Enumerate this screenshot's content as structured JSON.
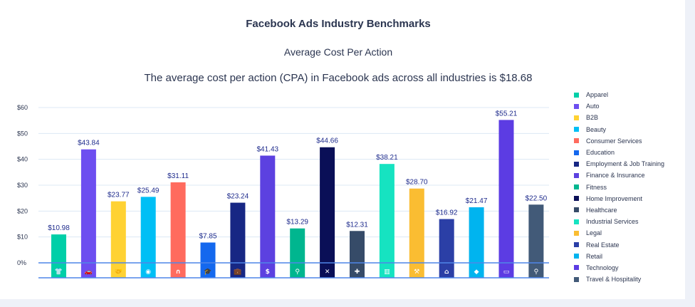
{
  "chart_data": {
    "type": "bar",
    "title": "Facebook Ads Industry Benchmarks",
    "subtitle": "Average Cost Per Action",
    "description": "The average cost per action (CPA) in Facebook ads across all industries is $18.68",
    "xlabel": "",
    "ylabel": "",
    "ylim": [
      0,
      60
    ],
    "yticks": [
      {
        "value": 0,
        "label": "0%"
      },
      {
        "value": 10,
        "label": "$10"
      },
      {
        "value": 20,
        "label": "$20"
      },
      {
        "value": 30,
        "label": "$30"
      },
      {
        "value": 40,
        "label": "$40"
      },
      {
        "value": 50,
        "label": "$50"
      },
      {
        "value": 60,
        "label": "$60"
      }
    ],
    "grid": true,
    "legend_position": "right",
    "categories": [
      "Apparel",
      "Auto",
      "B2B",
      "Beauty",
      "Consumer Services",
      "Education",
      "Employment & Job Training",
      "Finance & Insurance",
      "Fitness",
      "Home Improvement",
      "Healthcare",
      "Industrial Services",
      "Legal",
      "Real Estate",
      "Retail",
      "Technology",
      "Travel & Hospitality"
    ],
    "values": [
      10.98,
      43.84,
      23.77,
      25.49,
      31.11,
      7.85,
      23.24,
      41.43,
      13.29,
      44.66,
      12.31,
      38.21,
      28.7,
      16.92,
      21.47,
      55.21,
      22.5
    ],
    "labels": [
      "$10.98",
      "$43.84",
      "$23.77",
      "$25.49",
      "$31.11",
      "$7.85",
      "$23.24",
      "$41.43",
      "$13.29",
      "$44.66",
      "$12.31",
      "$38.21",
      "$28.70",
      "$16.92",
      "$21.47",
      "$55.21",
      "$22.50"
    ],
    "colors": [
      "#00cfa8",
      "#6d4ef0",
      "#ffd233",
      "#00bff5",
      "#ff6b5e",
      "#1468ee",
      "#172784",
      "#5c41e0",
      "#00b68f",
      "#0a0f57",
      "#364b68",
      "#16e3c1",
      "#fabd32",
      "#2b3fa6",
      "#00b4ef",
      "#5c3ce3",
      "#425a78"
    ],
    "icons": [
      "shirt-icon",
      "car-icon",
      "handshake-icon",
      "webcam-icon",
      "headset-icon",
      "graduation-cap-icon",
      "briefcase-icon",
      "money-bag-icon",
      "dumbbell-icon",
      "tools-icon",
      "medical-kit-icon",
      "factory-icon",
      "gavel-icon",
      "house-icon",
      "tag-icon",
      "laptop-icon",
      "map-pin-icon"
    ]
  },
  "colors": {
    "text": "#2b3550",
    "label": "#1e2b8c",
    "grid": "#dce8f5",
    "axis": "#4f86e8"
  }
}
